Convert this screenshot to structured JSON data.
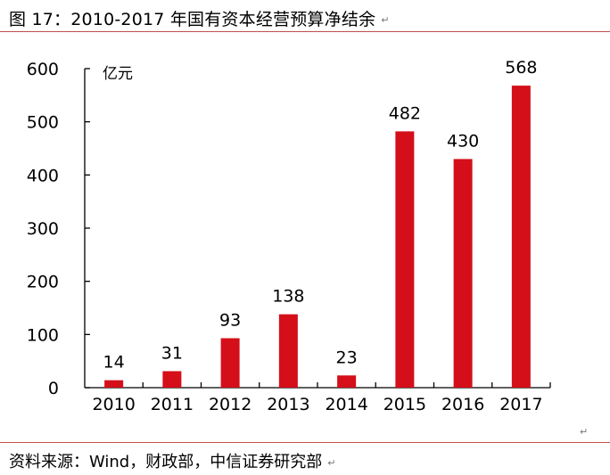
{
  "title": "图 17：2010-2017 年国有资本经营预算净结余",
  "return_mark": "↵",
  "source": "资料来源：Wind，财政部，中信证券研究部",
  "colors": {
    "bar": "#d40f1a",
    "rule": "#c0504d",
    "axis": "#000000",
    "text": "#000000"
  },
  "chart_data": {
    "type": "bar",
    "title": "",
    "xlabel": "",
    "ylabel": "亿元",
    "ylim": [
      0,
      600
    ],
    "yticks": [
      "0",
      "100",
      "200",
      "300",
      "400",
      "500",
      "600"
    ],
    "grid": false,
    "categories": [
      "2010",
      "2011",
      "2012",
      "2013",
      "2014",
      "2015",
      "2016",
      "2017"
    ],
    "values": [
      14,
      31,
      93,
      138,
      23,
      482,
      430,
      568
    ],
    "data_labels": [
      "14",
      "31",
      "93",
      "138",
      "23",
      "482",
      "430",
      "568"
    ]
  }
}
